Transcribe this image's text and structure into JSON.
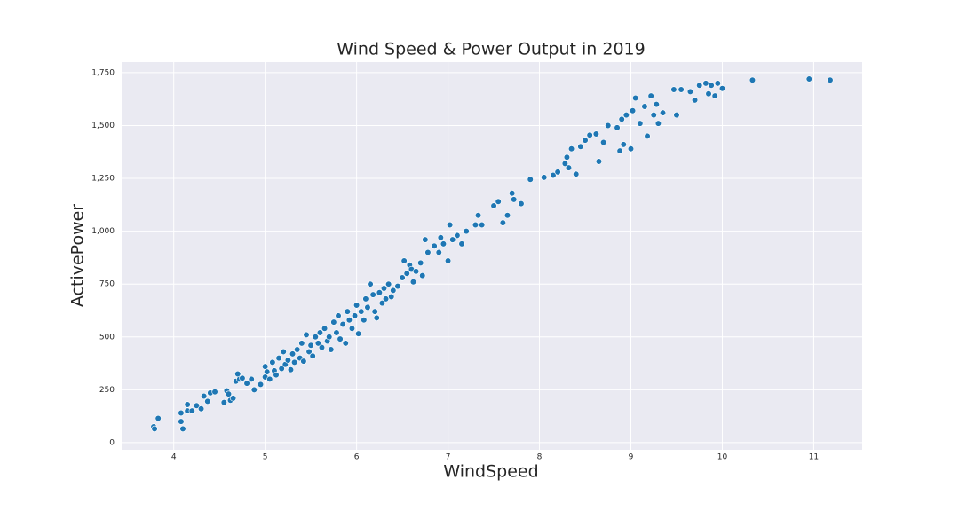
{
  "chart_data": {
    "type": "scatter",
    "title": "Wind Speed & Power Output in 2019",
    "xlabel": "WindSpeed",
    "ylabel": "ActivePower",
    "color": "#1f77b4",
    "grid": true,
    "xlim": [
      3.43,
      11.53
    ],
    "ylim": [
      -34,
      1800
    ],
    "xticks": [
      4,
      5,
      6,
      7,
      8,
      9,
      10,
      11
    ],
    "yticks": [
      0,
      250,
      500,
      750,
      {
        "value": 1000,
        "label": "1,000"
      },
      {
        "value": 1250,
        "label": "1,250"
      },
      {
        "value": 1500,
        "label": "1,500"
      },
      {
        "value": 1750,
        "label": "1,750"
      }
    ],
    "x": [
      3.78,
      3.79,
      3.83,
      4.08,
      4.08,
      4.1,
      4.15,
      4.15,
      4.2,
      4.25,
      4.3,
      4.33,
      4.37,
      4.4,
      4.45,
      4.55,
      4.58,
      4.6,
      4.62,
      4.65,
      4.68,
      4.7,
      4.72,
      4.75,
      4.8,
      4.85,
      4.88,
      4.95,
      5.0,
      5.0,
      5.02,
      5.05,
      5.08,
      5.1,
      5.12,
      5.15,
      5.18,
      5.2,
      5.22,
      5.25,
      5.28,
      5.3,
      5.32,
      5.35,
      5.38,
      5.4,
      5.42,
      5.45,
      5.48,
      5.5,
      5.52,
      5.55,
      5.58,
      5.6,
      5.62,
      5.65,
      5.68,
      5.7,
      5.72,
      5.75,
      5.78,
      5.8,
      5.82,
      5.85,
      5.88,
      5.9,
      5.92,
      5.95,
      5.98,
      6.0,
      6.02,
      6.05,
      6.08,
      6.1,
      6.12,
      6.15,
      6.18,
      6.2,
      6.22,
      6.25,
      6.28,
      6.3,
      6.32,
      6.35,
      6.38,
      6.4,
      6.45,
      6.5,
      6.52,
      6.55,
      6.58,
      6.6,
      6.62,
      6.65,
      6.7,
      6.72,
      6.75,
      6.78,
      6.85,
      6.9,
      6.92,
      6.95,
      7.0,
      7.02,
      7.05,
      7.1,
      7.15,
      7.2,
      7.3,
      7.33,
      7.37,
      7.5,
      7.55,
      7.6,
      7.65,
      7.7,
      7.72,
      7.8,
      7.9,
      8.05,
      8.15,
      8.2,
      8.28,
      8.3,
      8.32,
      8.35,
      8.4,
      8.45,
      8.5,
      8.55,
      8.62,
      8.65,
      8.7,
      8.75,
      8.85,
      8.88,
      8.9,
      8.92,
      8.95,
      9.0,
      9.02,
      9.05,
      9.1,
      9.15,
      9.18,
      9.22,
      9.25,
      9.28,
      9.3,
      9.35,
      9.47,
      9.5,
      9.55,
      9.65,
      9.7,
      9.75,
      9.82,
      9.85,
      9.88,
      9.92,
      9.95,
      10.0,
      10.33,
      10.95,
      11.18
    ],
    "values": [
      75,
      65,
      115,
      140,
      100,
      65,
      180,
      150,
      150,
      175,
      160,
      220,
      195,
      235,
      240,
      190,
      245,
      230,
      200,
      210,
      290,
      325,
      300,
      305,
      280,
      300,
      250,
      275,
      310,
      360,
      335,
      300,
      380,
      340,
      320,
      400,
      350,
      430,
      370,
      390,
      345,
      420,
      380,
      440,
      400,
      470,
      385,
      510,
      430,
      460,
      410,
      500,
      470,
      520,
      450,
      540,
      480,
      500,
      440,
      570,
      520,
      600,
      490,
      560,
      470,
      620,
      580,
      540,
      600,
      650,
      515,
      620,
      580,
      680,
      640,
      750,
      700,
      620,
      590,
      710,
      660,
      730,
      680,
      750,
      690,
      720,
      740,
      780,
      860,
      800,
      840,
      820,
      760,
      810,
      850,
      790,
      960,
      900,
      930,
      900,
      970,
      940,
      860,
      1030,
      960,
      980,
      940,
      1000,
      1030,
      1075,
      1030,
      1120,
      1140,
      1040,
      1075,
      1180,
      1150,
      1130,
      1245,
      1255,
      1265,
      1280,
      1320,
      1350,
      1300,
      1390,
      1270,
      1400,
      1430,
      1455,
      1460,
      1330,
      1420,
      1500,
      1490,
      1380,
      1530,
      1410,
      1550,
      1390,
      1570,
      1630,
      1510,
      1590,
      1450,
      1640,
      1550,
      1600,
      1510,
      1560,
      1670,
      1550,
      1670,
      1660,
      1620,
      1690,
      1700,
      1650,
      1690,
      1640,
      1700,
      1675,
      1715,
      1720,
      1715
    ]
  }
}
